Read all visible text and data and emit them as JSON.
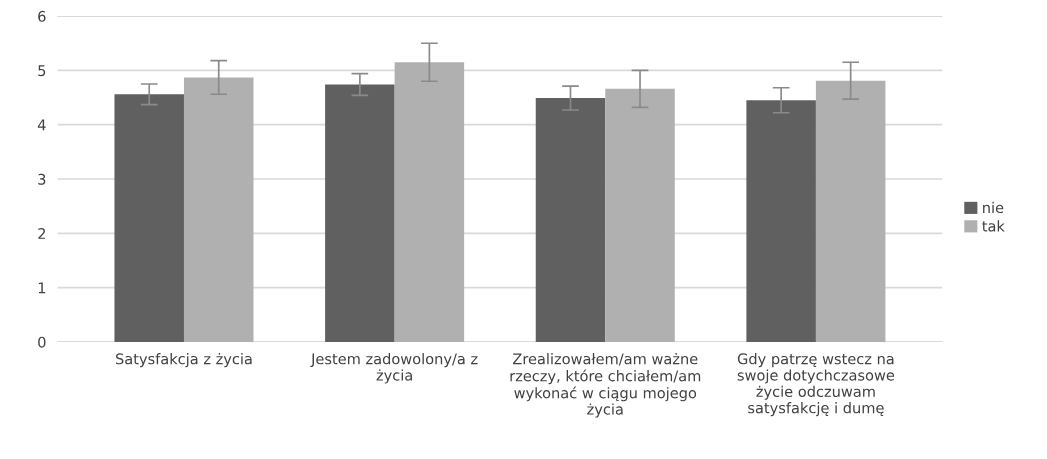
{
  "chart_data": {
    "type": "bar",
    "categories": [
      "Satysfakcja z życia",
      "Jestem zadowolony/a z\nżycia",
      "Zrealizowałem/am ważne\nrzeczy, które chciałem/am\nwykonać w ciągu mojego\nżycia",
      "Gdy patrzę wstecz na\nswoje dotychczasowe\nżycie odczuwam\nsatysfakcję i dumę"
    ],
    "series": [
      {
        "name": "nie",
        "color": "#606060",
        "values": [
          4.56,
          4.74,
          4.49,
          4.45
        ],
        "errors": [
          0.19,
          0.2,
          0.22,
          0.23
        ]
      },
      {
        "name": "tak",
        "color": "#b0b0b0",
        "values": [
          4.87,
          5.15,
          4.66,
          4.81
        ],
        "errors": [
          0.31,
          0.35,
          0.34,
          0.34
        ]
      }
    ],
    "ylim": [
      0,
      6
    ],
    "yticks": [
      0,
      1,
      2,
      3,
      4,
      5,
      6
    ],
    "grid": "y",
    "legend": "right"
  }
}
